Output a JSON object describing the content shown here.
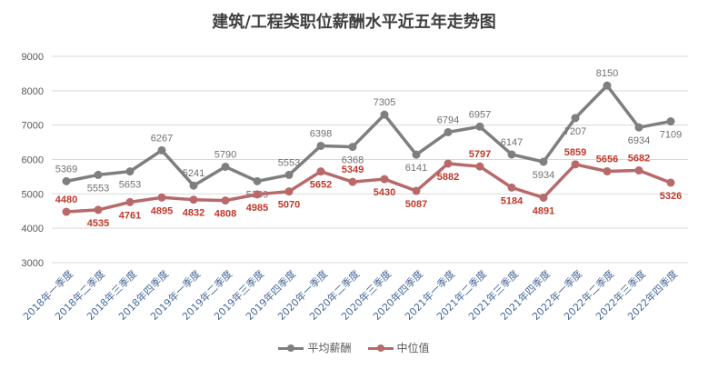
{
  "chart_data": {
    "type": "line",
    "title": "建筑/工程类职位薪酬水平近五年走势图",
    "categories": [
      "2018年一季度",
      "2018年二季度",
      "2018年三季度",
      "2018年四季度",
      "2019年一季度",
      "2019年二季度",
      "2019年三季度",
      "2019年四季度",
      "2020年一季度",
      "2020年二季度",
      "2020年三季度",
      "2020年四季度",
      "2021年一季度",
      "2021年二季度",
      "2021年三季度",
      "2021年四季度",
      "2022年一季度",
      "2022年二季度",
      "2022年三季度",
      "2022年四季度"
    ],
    "series": [
      {
        "name": "平均薪酬",
        "color": "#7f7f7f",
        "label_color": "#707070",
        "values": [
          5369,
          5553,
          5653,
          6267,
          5241,
          5790,
          5369,
          5553,
          6398,
          6368,
          7305,
          6141,
          6794,
          6957,
          6147,
          5934,
          7207,
          8150,
          6934,
          7109
        ]
      },
      {
        "name": "中位值",
        "color": "#b86a6a",
        "label_color": "#c0392b",
        "values": [
          4480,
          4535,
          4761,
          4895,
          4832,
          4808,
          4985,
          5070,
          5652,
          5349,
          5430,
          5087,
          5882,
          5797,
          5184,
          4891,
          5859,
          5656,
          5682,
          5326
        ]
      }
    ],
    "ylim": [
      3000,
      9000
    ],
    "yticks": [
      3000,
      4000,
      5000,
      6000,
      7000,
      8000,
      9000
    ],
    "grid": true,
    "legend": "bottom",
    "data_labels": true
  }
}
